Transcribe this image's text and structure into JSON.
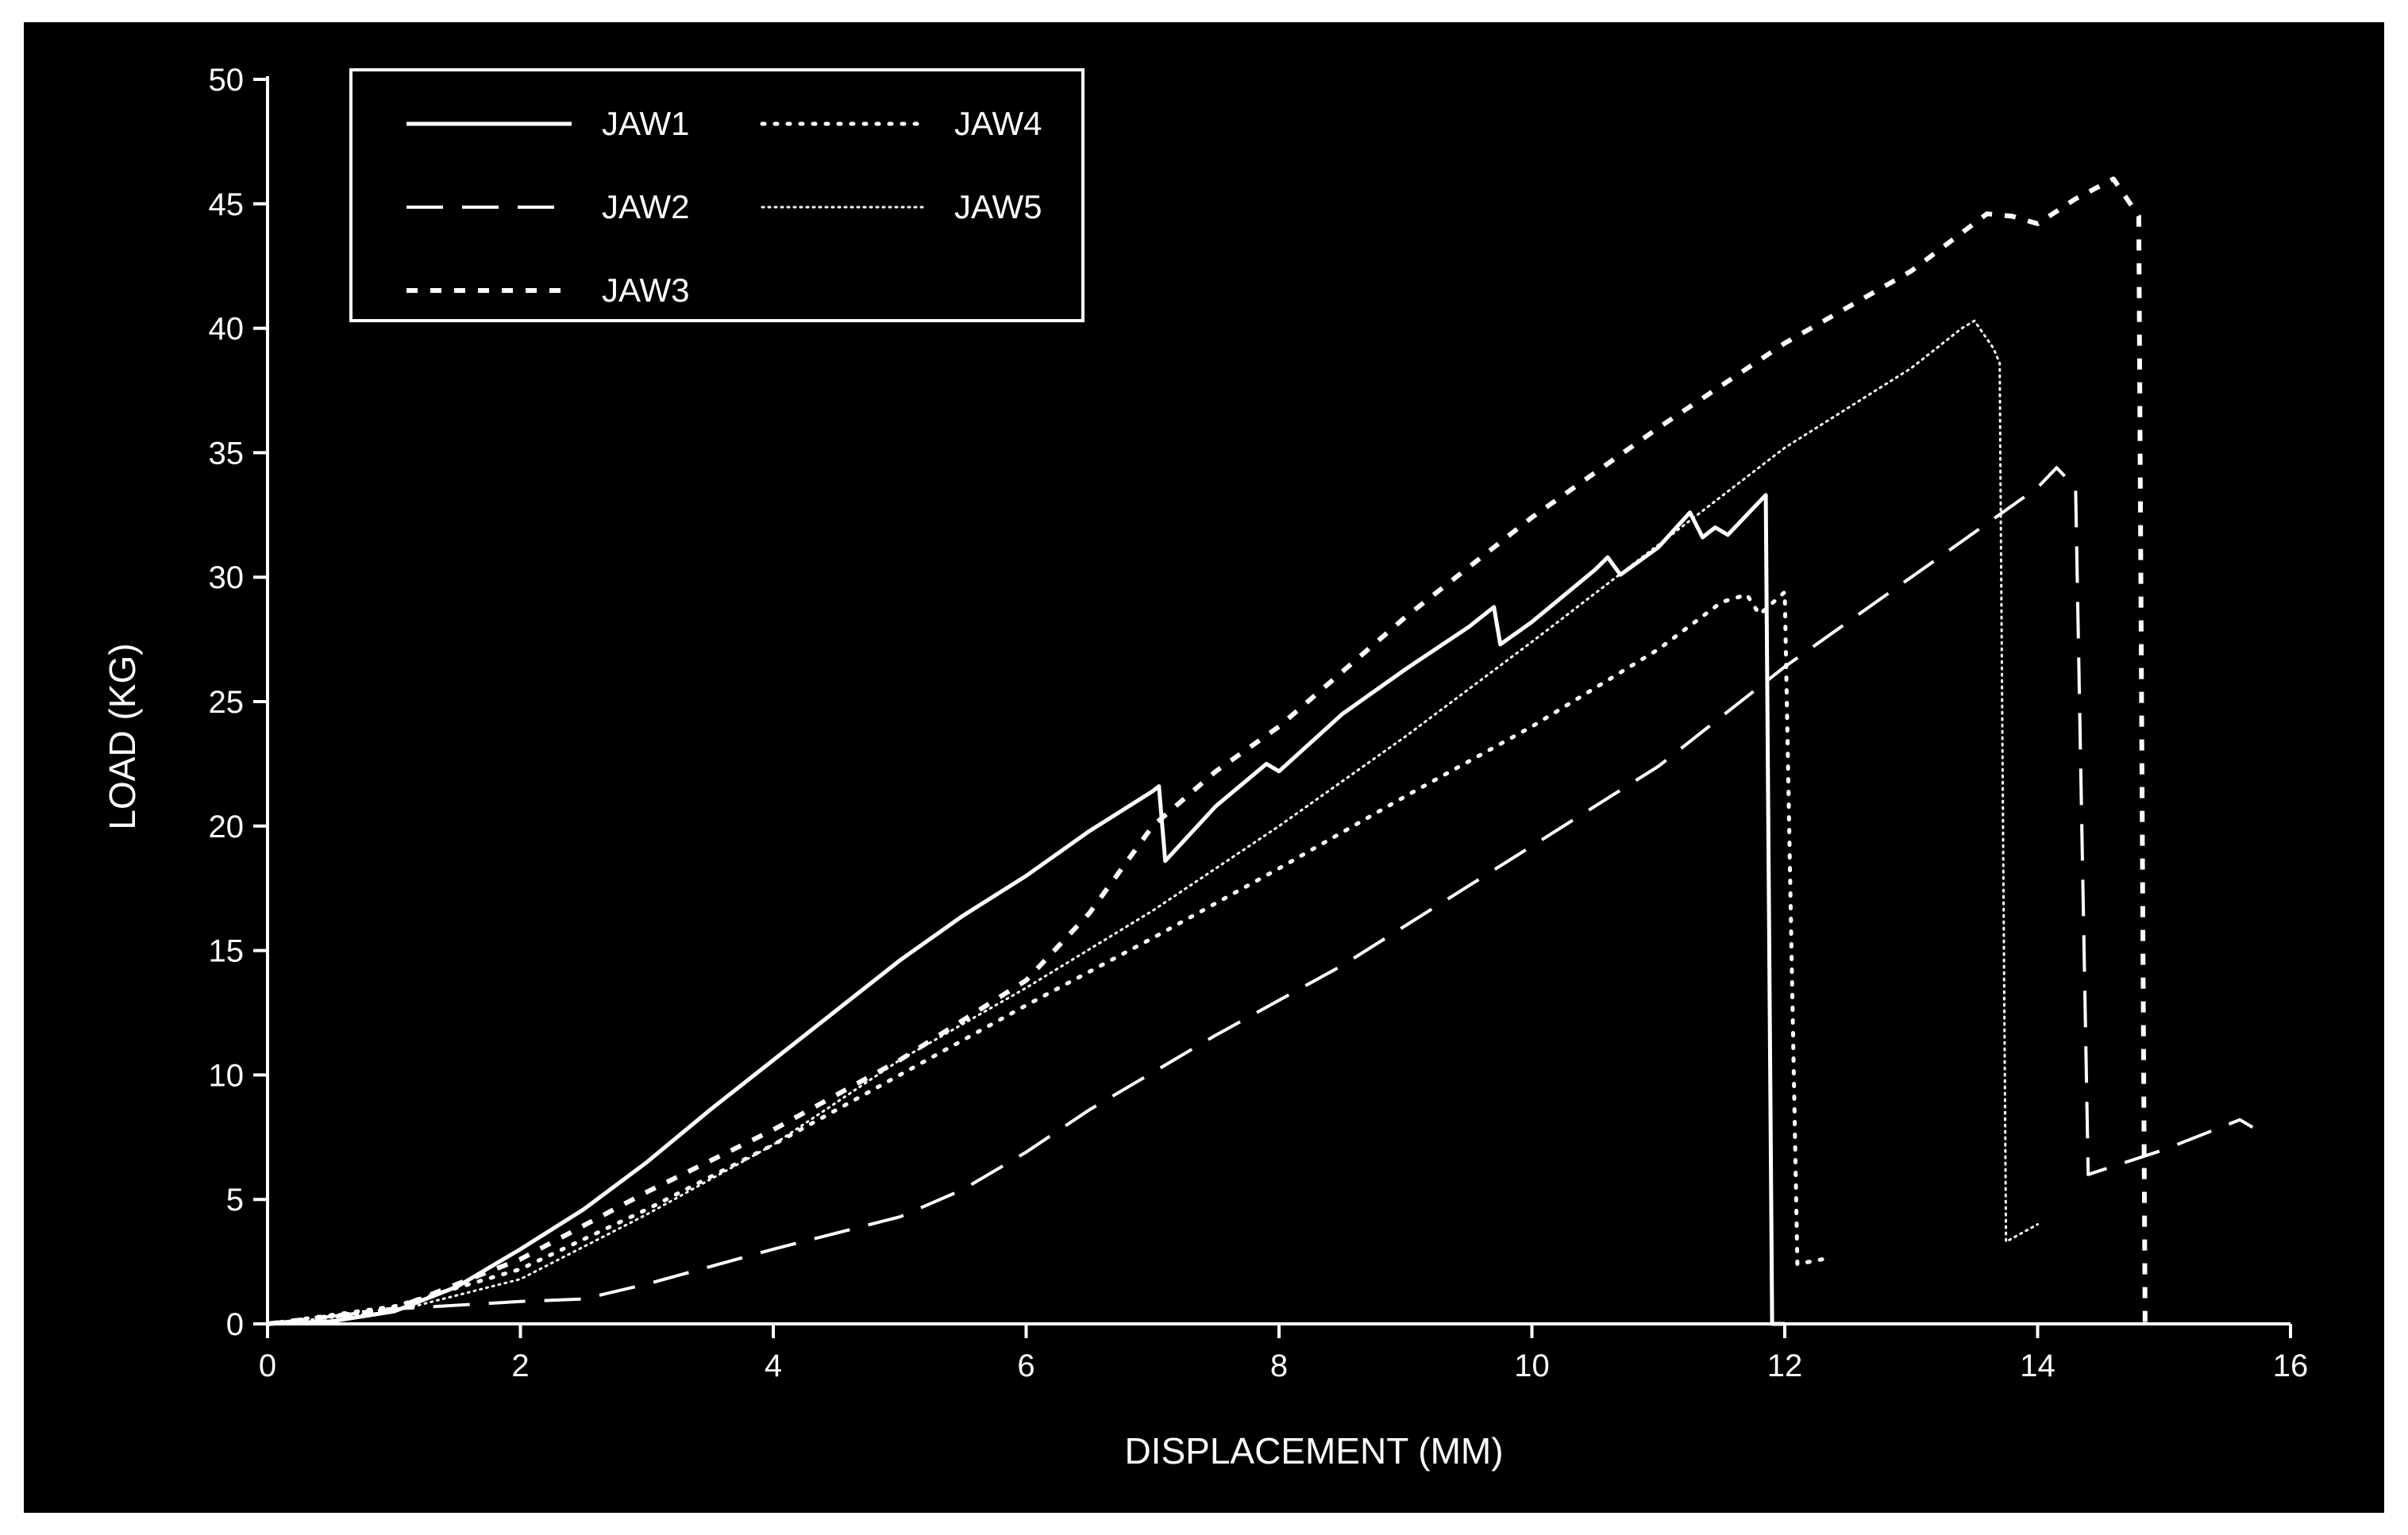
{
  "chart_data": {
    "type": "line",
    "title": "",
    "xlabel": "DISPLACEMENT (MM)",
    "ylabel": "LOAD (KG)",
    "xlim": [
      0,
      16
    ],
    "ylim": [
      0,
      50
    ],
    "xticks": [
      0,
      2,
      4,
      6,
      8,
      10,
      12,
      14,
      16
    ],
    "yticks": [
      0,
      5,
      10,
      15,
      20,
      25,
      30,
      35,
      40,
      45,
      50
    ],
    "grid": false,
    "legend_position": "top-left",
    "colors": {
      "background": "#000000",
      "foreground": "#ffffff"
    },
    "series": [
      {
        "name": "JAW1",
        "style": "solid",
        "points": [
          [
            0,
            0
          ],
          [
            0.5,
            0.1
          ],
          [
            1,
            0.5
          ],
          [
            1.5,
            1.5
          ],
          [
            2,
            3
          ],
          [
            2.5,
            4.6
          ],
          [
            3,
            6.5
          ],
          [
            3.5,
            8.6
          ],
          [
            4,
            10.6
          ],
          [
            4.5,
            12.6
          ],
          [
            5,
            14.6
          ],
          [
            5.5,
            16.4
          ],
          [
            6,
            18
          ],
          [
            6.5,
            19.8
          ],
          [
            7,
            21.4
          ],
          [
            7.05,
            21.6
          ],
          [
            7.1,
            18.6
          ],
          [
            7.5,
            20.8
          ],
          [
            7.9,
            22.5
          ],
          [
            8,
            22.2
          ],
          [
            8.5,
            24.5
          ],
          [
            9,
            26.3
          ],
          [
            9.5,
            28
          ],
          [
            9.7,
            28.8
          ],
          [
            9.75,
            27.3
          ],
          [
            10,
            28.2
          ],
          [
            10.5,
            30.3
          ],
          [
            10.6,
            30.8
          ],
          [
            10.7,
            30.1
          ],
          [
            11,
            31.2
          ],
          [
            11.25,
            32.6
          ],
          [
            11.35,
            31.6
          ],
          [
            11.45,
            32
          ],
          [
            11.55,
            31.7
          ],
          [
            11.85,
            33.3
          ],
          [
            11.9,
            0
          ],
          [
            12,
            0
          ]
        ]
      },
      {
        "name": "JAW2",
        "style": "long-dash",
        "points": [
          [
            0,
            0
          ],
          [
            1,
            0.6
          ],
          [
            2,
            0.9
          ],
          [
            2.5,
            1
          ],
          [
            3,
            1.6
          ],
          [
            4,
            3
          ],
          [
            5,
            4.3
          ],
          [
            5.5,
            5.4
          ],
          [
            6,
            6.9
          ],
          [
            6.5,
            8.6
          ],
          [
            7,
            10.1
          ],
          [
            7.5,
            11.6
          ],
          [
            8,
            13
          ],
          [
            8.5,
            14.4
          ],
          [
            9,
            16
          ],
          [
            9.5,
            17.6
          ],
          [
            10,
            19.2
          ],
          [
            10.5,
            20.8
          ],
          [
            11,
            22.4
          ],
          [
            11.5,
            24.4
          ],
          [
            12,
            26.4
          ],
          [
            12.5,
            28.2
          ],
          [
            13,
            30
          ],
          [
            13.5,
            31.8
          ],
          [
            14,
            33.6
          ],
          [
            14.15,
            34.4
          ],
          [
            14.3,
            33.6
          ],
          [
            14.4,
            6
          ],
          [
            15,
            7
          ],
          [
            15.6,
            8.2
          ],
          [
            15.7,
            7.9
          ]
        ]
      },
      {
        "name": "JAW3",
        "style": "short-dash",
        "points": [
          [
            0,
            0
          ],
          [
            1,
            0.6
          ],
          [
            1.5,
            1.6
          ],
          [
            2,
            2.6
          ],
          [
            3,
            5.3
          ],
          [
            4,
            7.8
          ],
          [
            5,
            10.6
          ],
          [
            6,
            13.8
          ],
          [
            6.5,
            16.5
          ],
          [
            7,
            20
          ],
          [
            7.5,
            22.2
          ],
          [
            8,
            24
          ],
          [
            8.5,
            26.2
          ],
          [
            9,
            28.4
          ],
          [
            10,
            32.4
          ],
          [
            11,
            36
          ],
          [
            12,
            39.4
          ],
          [
            13,
            42.3
          ],
          [
            13.6,
            44.6
          ],
          [
            13.8,
            44.5
          ],
          [
            14,
            44.2
          ],
          [
            14.3,
            45.2
          ],
          [
            14.6,
            46
          ],
          [
            14.8,
            44.5
          ],
          [
            14.85,
            0
          ]
        ]
      },
      {
        "name": "JAW4",
        "style": "dotted",
        "points": [
          [
            0,
            0
          ],
          [
            1,
            0.7
          ],
          [
            2,
            2.2
          ],
          [
            3,
            4.6
          ],
          [
            4,
            7.2
          ],
          [
            5,
            10
          ],
          [
            6,
            12.8
          ],
          [
            7,
            15.5
          ],
          [
            8,
            18.3
          ],
          [
            9,
            21.2
          ],
          [
            10,
            24
          ],
          [
            11,
            27.1
          ],
          [
            11.5,
            29
          ],
          [
            11.7,
            29.3
          ],
          [
            11.8,
            28.5
          ],
          [
            12,
            29.4
          ],
          [
            12.1,
            2.4
          ],
          [
            12.3,
            2.6
          ]
        ]
      },
      {
        "name": "JAW5",
        "style": "fine-dotted",
        "points": [
          [
            0,
            0
          ],
          [
            1,
            0.5
          ],
          [
            2,
            1.8
          ],
          [
            3,
            4.4
          ],
          [
            4,
            7.2
          ],
          [
            5,
            10.6
          ],
          [
            6,
            13.5
          ],
          [
            7,
            16.6
          ],
          [
            8,
            20
          ],
          [
            9,
            23.6
          ],
          [
            10,
            27.4
          ],
          [
            11,
            31.3
          ],
          [
            12,
            35.2
          ],
          [
            13,
            38.4
          ],
          [
            13.4,
            40
          ],
          [
            13.5,
            40.3
          ],
          [
            13.65,
            39.2
          ],
          [
            13.7,
            38.6
          ],
          [
            13.75,
            3.3
          ],
          [
            14,
            4
          ]
        ]
      }
    ]
  }
}
